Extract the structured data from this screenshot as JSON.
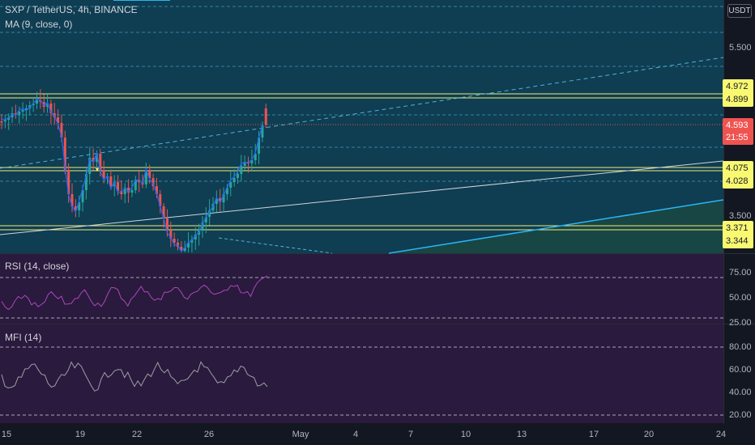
{
  "legend": {
    "title": "SXP / TetherUS, 4h, BINANCE",
    "ma": "MA (9, close, 0)"
  },
  "rsi_label": "RSI (14, close)",
  "mfi_label": "MFI (14)",
  "currency": "USDT",
  "price_axis": [
    "5.500",
    "3.500"
  ],
  "price_pills": {
    "p1": "4.972",
    "p2": "4.899",
    "current": "4.593",
    "countdown": "21:55",
    "p4": "4.075",
    "p5": "4.028",
    "p6": "3.371",
    "p7": "3.344"
  },
  "rsi_axis": [
    "75.00",
    "50.00",
    "25.00"
  ],
  "mfi_axis": [
    "80.00",
    "60.00",
    "40.00",
    "20.00"
  ],
  "time_axis": [
    "15",
    "19",
    "22",
    "26",
    "May",
    "4",
    "7",
    "10",
    "13",
    "17",
    "20",
    "24"
  ],
  "colors": {
    "up": "#26a69a",
    "down": "#ef5350",
    "ma": "#2962ff",
    "rsi": "#ab47bc",
    "mfi": "#9aa0a6",
    "bg_price": "#0f3d52",
    "bg_osc": "#2a1a3d"
  }
}
